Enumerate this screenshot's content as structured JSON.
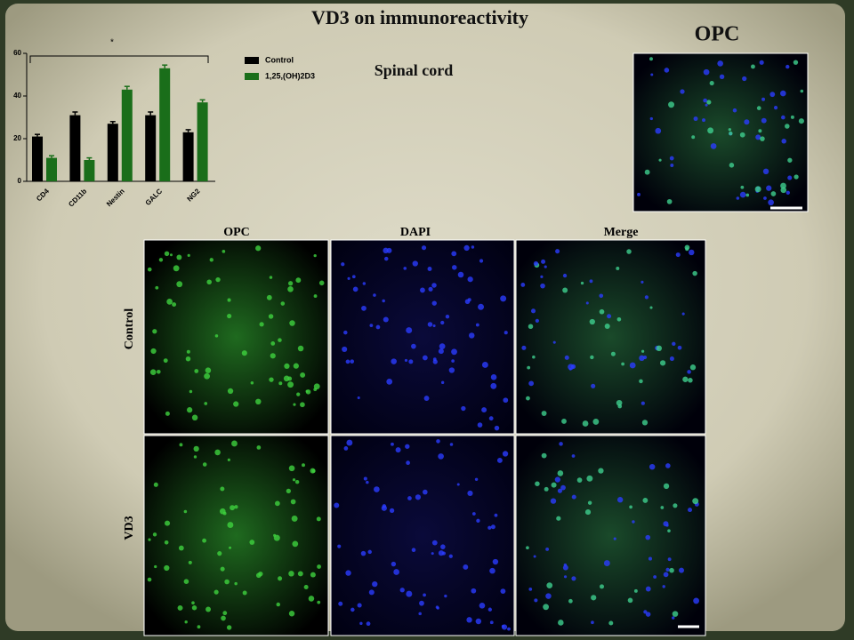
{
  "title": "VD3 on immunoreactivity",
  "opc_title": "OPC",
  "panel_columns": [
    "OPC",
    "DAPI",
    "Merge"
  ],
  "panel_rows": [
    "Control",
    "VD3"
  ],
  "chart_data": {
    "type": "bar",
    "subtitle": "Spinal cord",
    "annotation": "*",
    "categories": [
      "CD4",
      "CD11b",
      "Nestin",
      "GALC",
      "NG2"
    ],
    "series": [
      {
        "name": "Control",
        "color": "#000000",
        "values": [
          21,
          31,
          27,
          31,
          23
        ],
        "errors": [
          1,
          1.5,
          1,
          1.5,
          1.2
        ]
      },
      {
        "name": "1,25,(OH)2D3",
        "color": "#1a6e1a",
        "values": [
          11,
          10,
          43,
          53,
          37
        ],
        "errors": [
          1,
          1,
          1.5,
          1.5,
          1.2
        ]
      }
    ],
    "ylim": [
      0,
      60
    ],
    "yticks": [
      0,
      20,
      40,
      60
    ],
    "grid": false,
    "legend": "top-right"
  }
}
